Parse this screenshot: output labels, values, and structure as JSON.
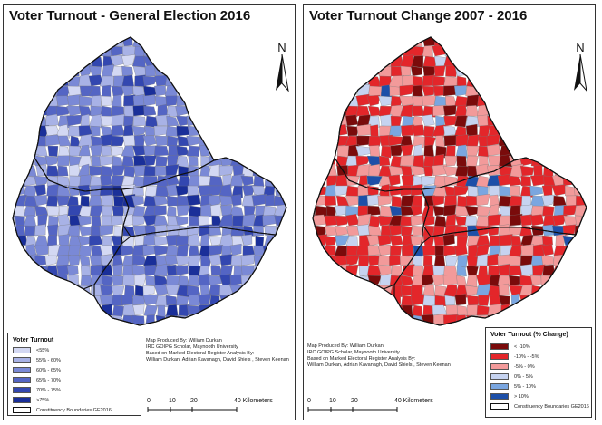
{
  "left_map": {
    "title": "Voter Turnout - General Election 2016",
    "north_label": "N",
    "legend": {
      "title": "Voter Turnout",
      "items": [
        {
          "label": "<55%",
          "color": "#d3d8f3"
        },
        {
          "label": "55% - 60%",
          "color": "#a8b2e6"
        },
        {
          "label": "60% - 65%",
          "color": "#7a89d6"
        },
        {
          "label": "65% - 70%",
          "color": "#5465c4"
        },
        {
          "label": "70% - 75%",
          "color": "#3347b0"
        },
        {
          "label": ">75%",
          "color": "#1a2f99"
        }
      ],
      "boundary_label": "Constituency Boundaries GE2016"
    },
    "credits": [
      "Map Produced By: William Durkan",
      "IRC GOIPG Scholar, Maynooth University",
      "Based on Marked Electoral Register Analysis By:",
      "William Durkan, Adrian Kavanagh, David Shiels , Steven Keenan"
    ],
    "scale": {
      "ticks": [
        "0",
        "10",
        "20",
        "40 Kilometers"
      ]
    }
  },
  "right_map": {
    "title": "Voter Turnout Change 2007 - 2016",
    "north_label": "N",
    "legend": {
      "title": "Voter Turnout (% Change)",
      "items": [
        {
          "label": "< -10%",
          "color": "#7a0b0b"
        },
        {
          "label": "-10% - -5%",
          "color": "#e3262a"
        },
        {
          "label": "-5% - 0%",
          "color": "#f29a9a"
        },
        {
          "label": "0% - 5%",
          "color": "#c6d3f0"
        },
        {
          "label": "5% - 10%",
          "color": "#7aa6e0"
        },
        {
          "label": "> 10%",
          "color": "#1d4fa8"
        }
      ],
      "boundary_label": "Constituency Boundaries GE2016"
    },
    "credits": [
      "Map Produced By: William Durkan",
      "IRC GOIPG Scholar, Maynooth University",
      "Based on Marked Electoral Register Analysis By:",
      "William Durkan, Adrian Kavanagh, David Shiels , Steven Keenan"
    ],
    "scale": {
      "ticks": [
        "0",
        "10",
        "20",
        "40 Kilometers"
      ]
    }
  }
}
